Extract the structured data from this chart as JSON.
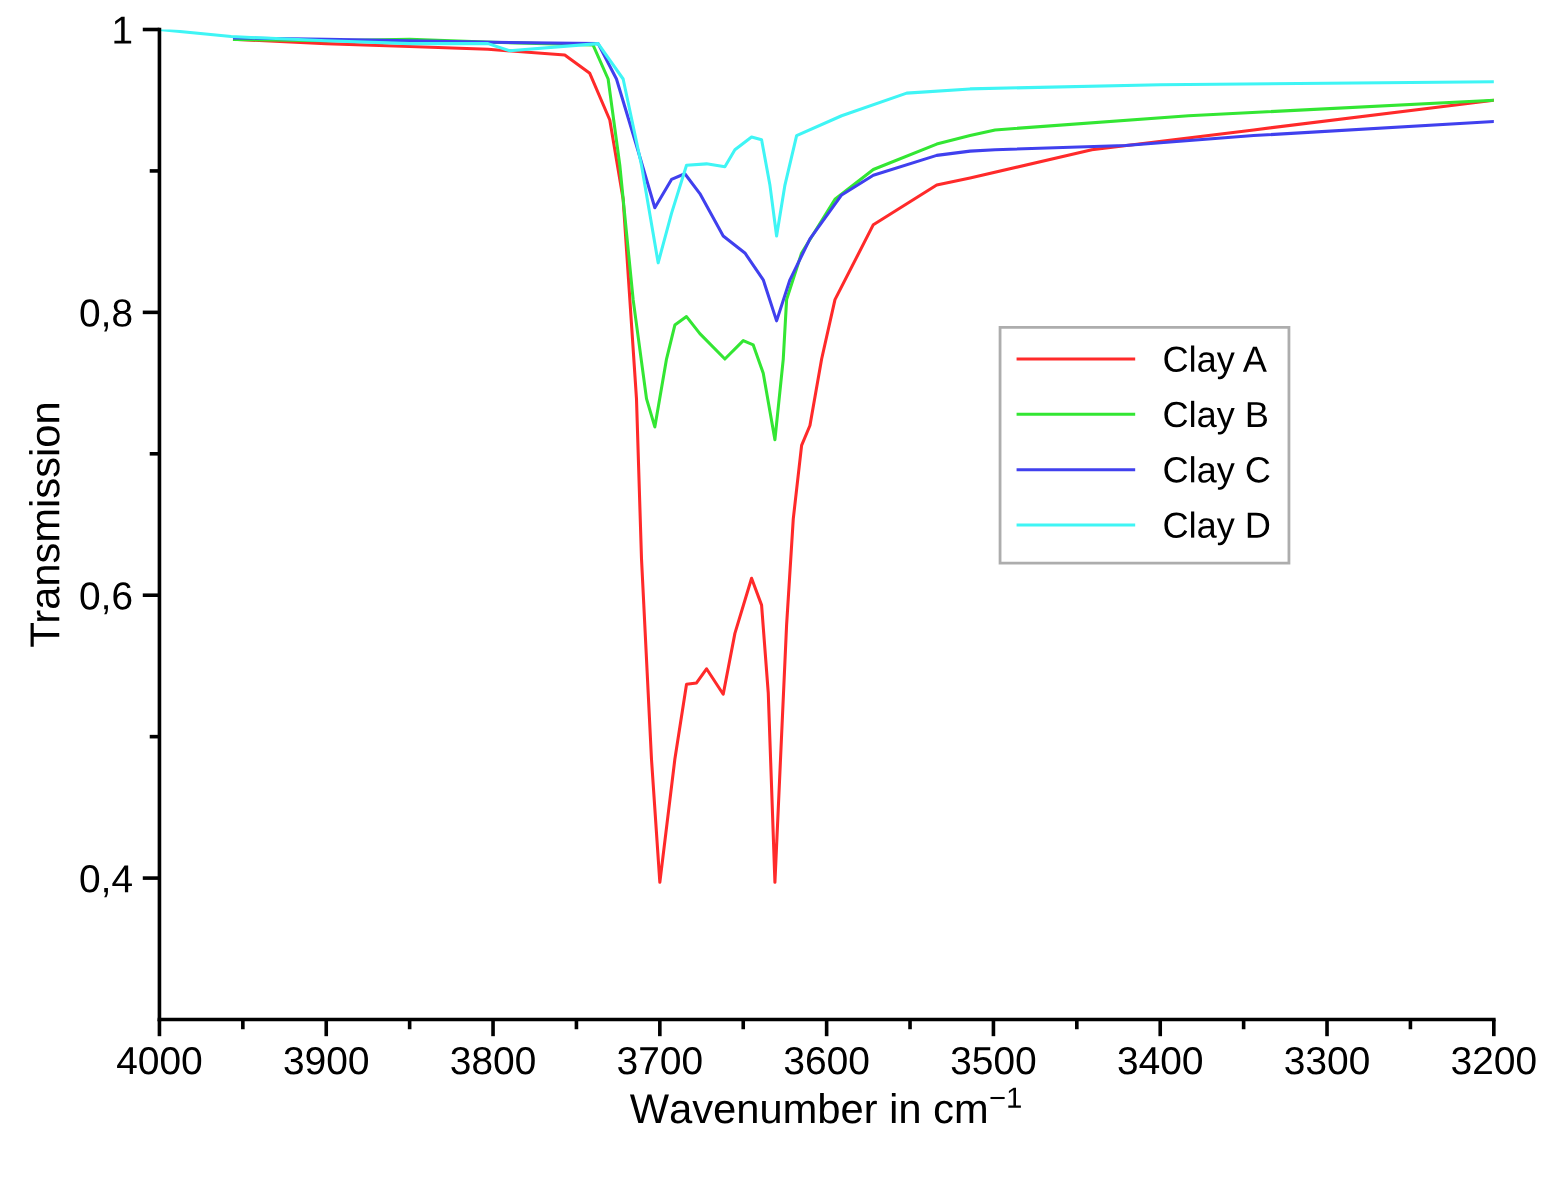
{
  "chart_data": {
    "type": "line",
    "xlabel": "Wavenumber in cm$^{−1}$",
    "ylabel": "Transmission",
    "xlim": [
      4000,
      3200
    ],
    "ylim": [
      0.3,
      1
    ],
    "xticks": [
      4000,
      {
        "value": 3950,
        "label": null
      },
      3900,
      {
        "value": 3850,
        "label": null
      },
      3800,
      {
        "value": 3750,
        "label": null
      },
      3700,
      {
        "value": 3650,
        "label": null
      },
      3600,
      {
        "value": 3550,
        "label": null
      },
      3500,
      {
        "value": 3450,
        "label": null
      },
      3400,
      {
        "value": 3350,
        "label": null
      },
      3300,
      {
        "value": 3250,
        "label": null
      },
      3200
    ],
    "yticks": [
      {
        "value": 0.4,
        "label": "0,4"
      },
      {
        "value": 0.5,
        "label": null
      },
      {
        "value": 0.6,
        "label": "0,6"
      },
      {
        "value": 0.7,
        "label": null
      },
      {
        "value": 0.8,
        "label": "0,8"
      },
      {
        "value": 0.9,
        "label": null
      },
      1
    ],
    "grid": false,
    "legend": "right",
    "marker": "none",
    "line_style": "solid",
    "series": [
      {
        "name": "Clay A",
        "color": "#ff2a2a",
        "x": [
          3955,
          3900,
          3850,
          3803,
          3757,
          3742,
          3730,
          3722,
          3714,
          3711,
          3705,
          3700,
          3691,
          3684,
          3678,
          3672,
          3662,
          3655,
          3645,
          3639,
          3635,
          3631,
          3624,
          3620,
          3615,
          3610,
          3603,
          3595,
          3572,
          3534,
          3514,
          3441,
          3344,
          3200
        ],
        "values": [
          0.993,
          0.99,
          0.988,
          0.986,
          0.982,
          0.969,
          0.936,
          0.88,
          0.739,
          0.626,
          0.484,
          0.397,
          0.484,
          0.537,
          0.538,
          0.548,
          0.53,
          0.573,
          0.612,
          0.593,
          0.531,
          0.397,
          0.579,
          0.654,
          0.706,
          0.72,
          0.767,
          0.809,
          0.862,
          0.89,
          0.895,
          0.915,
          0.929,
          0.95
        ]
      },
      {
        "name": "Clay B",
        "color": "#33e633",
        "x": [
          3955,
          3900,
          3850,
          3800,
          3740,
          3731,
          3724,
          3716,
          3708,
          3703,
          3696,
          3691,
          3684,
          3676,
          3661,
          3650,
          3644,
          3638,
          3631,
          3626,
          3624,
          3615,
          3595,
          3572,
          3534,
          3514,
          3499,
          3383,
          3200
        ],
        "values": [
          0.993,
          0.992,
          0.993,
          0.991,
          0.989,
          0.965,
          0.904,
          0.809,
          0.739,
          0.719,
          0.767,
          0.791,
          0.797,
          0.785,
          0.767,
          0.78,
          0.777,
          0.757,
          0.71,
          0.767,
          0.809,
          0.842,
          0.88,
          0.901,
          0.919,
          0.925,
          0.929,
          0.939,
          0.95
        ]
      },
      {
        "name": "Clay C",
        "color": "#4040ee",
        "x": [
          3955,
          3900,
          3850,
          3800,
          3737,
          3726,
          3714,
          3703,
          3693,
          3685,
          3676,
          3662,
          3649,
          3638,
          3630,
          3622,
          3610,
          3591,
          3572,
          3534,
          3514,
          3499,
          3421,
          3344,
          3200
        ],
        "values": [
          0.994,
          0.993,
          0.992,
          0.991,
          0.99,
          0.965,
          0.918,
          0.874,
          0.894,
          0.898,
          0.884,
          0.854,
          0.842,
          0.823,
          0.794,
          0.823,
          0.852,
          0.883,
          0.897,
          0.911,
          0.914,
          0.915,
          0.918,
          0.925,
          0.935
        ]
      },
      {
        "name": "Clay D",
        "color": "#3ff5f5",
        "x": [
          4000,
          3957,
          3900,
          3850,
          3803,
          3790,
          3737,
          3722,
          3711,
          3701,
          3693,
          3684,
          3672,
          3661,
          3655,
          3645,
          3639,
          3634,
          3630,
          3625,
          3618,
          3591,
          3552,
          3514,
          3400,
          3300,
          3200
        ],
        "values": [
          1,
          0.995,
          0.992,
          0.99,
          0.99,
          0.985,
          0.99,
          0.965,
          0.904,
          0.835,
          0.87,
          0.904,
          0.905,
          0.903,
          0.915,
          0.924,
          0.922,
          0.89,
          0.854,
          0.89,
          0.925,
          0.939,
          0.955,
          0.958,
          0.961,
          0.962,
          0.963
        ]
      }
    ]
  }
}
